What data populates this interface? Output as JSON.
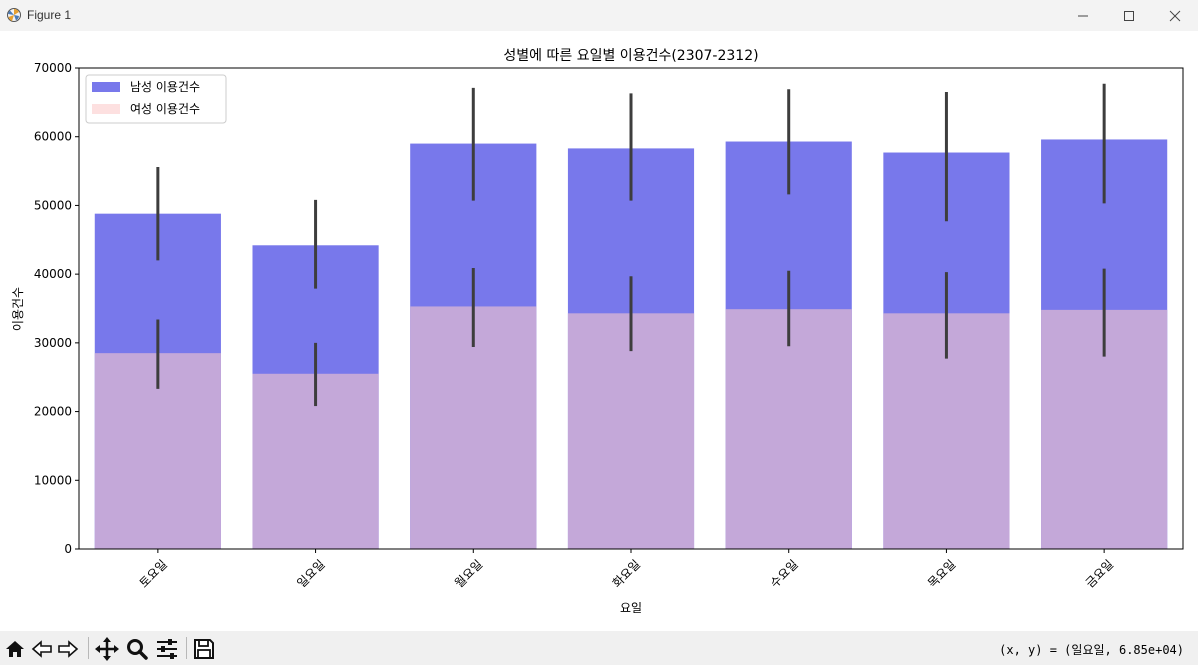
{
  "window": {
    "title": "Figure 1",
    "minimize_icon": "minimize-icon",
    "maximize_icon": "maximize-icon",
    "close_icon": "close-icon"
  },
  "toolbar": {
    "buttons": [
      "home-icon",
      "back-icon",
      "forward-icon",
      "pan-icon",
      "zoom-icon",
      "configure-subplots-icon",
      "save-icon"
    ],
    "coords": "(x, y) = (일요일, 6.85e+04)"
  },
  "chart_data": {
    "type": "bar",
    "title": "성별에 따른 요일별 이용건수(2307-2312)",
    "xlabel": "요일",
    "ylabel": "이용건수",
    "categories": [
      "토요일",
      "일요일",
      "월요일",
      "화요일",
      "수요일",
      "목요일",
      "금요일"
    ],
    "ylim": [
      0,
      70000
    ],
    "yticks": [
      0,
      10000,
      20000,
      30000,
      40000,
      50000,
      60000,
      70000
    ],
    "ytick_labels": [
      "0",
      "10000",
      "20000",
      "30000",
      "40000",
      "50000",
      "60000",
      "70000"
    ],
    "x_tick_rotation": 45,
    "grid": false,
    "legend_position": "top-left",
    "series": [
      {
        "name": "남성 이용건수",
        "color": "#7878eb",
        "values": [
          48800,
          44200,
          59000,
          58300,
          59300,
          57700,
          59600
        ],
        "error_low": [
          42000,
          37900,
          50700,
          50700,
          51600,
          47700,
          50300
        ],
        "error_high": [
          55600,
          50800,
          67100,
          66300,
          66900,
          66500,
          67700
        ]
      },
      {
        "name": "여성 이용건수",
        "color": "#c4a8d9",
        "legend_color": "#fde0e0",
        "values": [
          28500,
          25500,
          35300,
          34300,
          34900,
          34300,
          34800
        ],
        "error_low": [
          23300,
          20800,
          29400,
          28800,
          29500,
          27700,
          28000
        ],
        "error_high": [
          33400,
          30000,
          40900,
          39700,
          40500,
          40300,
          40800
        ]
      }
    ],
    "errorbar_color": "#3d3d3d"
  }
}
